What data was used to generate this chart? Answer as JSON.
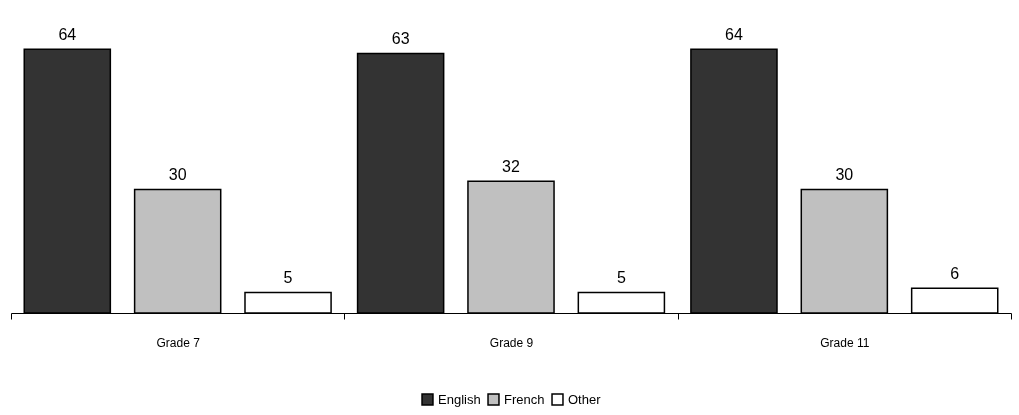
{
  "chart_data": {
    "type": "bar",
    "categories": [
      "Grade 7",
      "Grade 9",
      "Grade 11"
    ],
    "series": [
      {
        "name": "English",
        "color": "#333333",
        "values": [
          64,
          63,
          64
        ]
      },
      {
        "name": "French",
        "color": "#c0c0c0",
        "values": [
          30,
          32,
          30
        ]
      },
      {
        "name": "Other",
        "color": "#ffffff",
        "values": [
          5,
          5,
          6
        ]
      }
    ],
    "data_labels": true,
    "legend": "bottom"
  }
}
